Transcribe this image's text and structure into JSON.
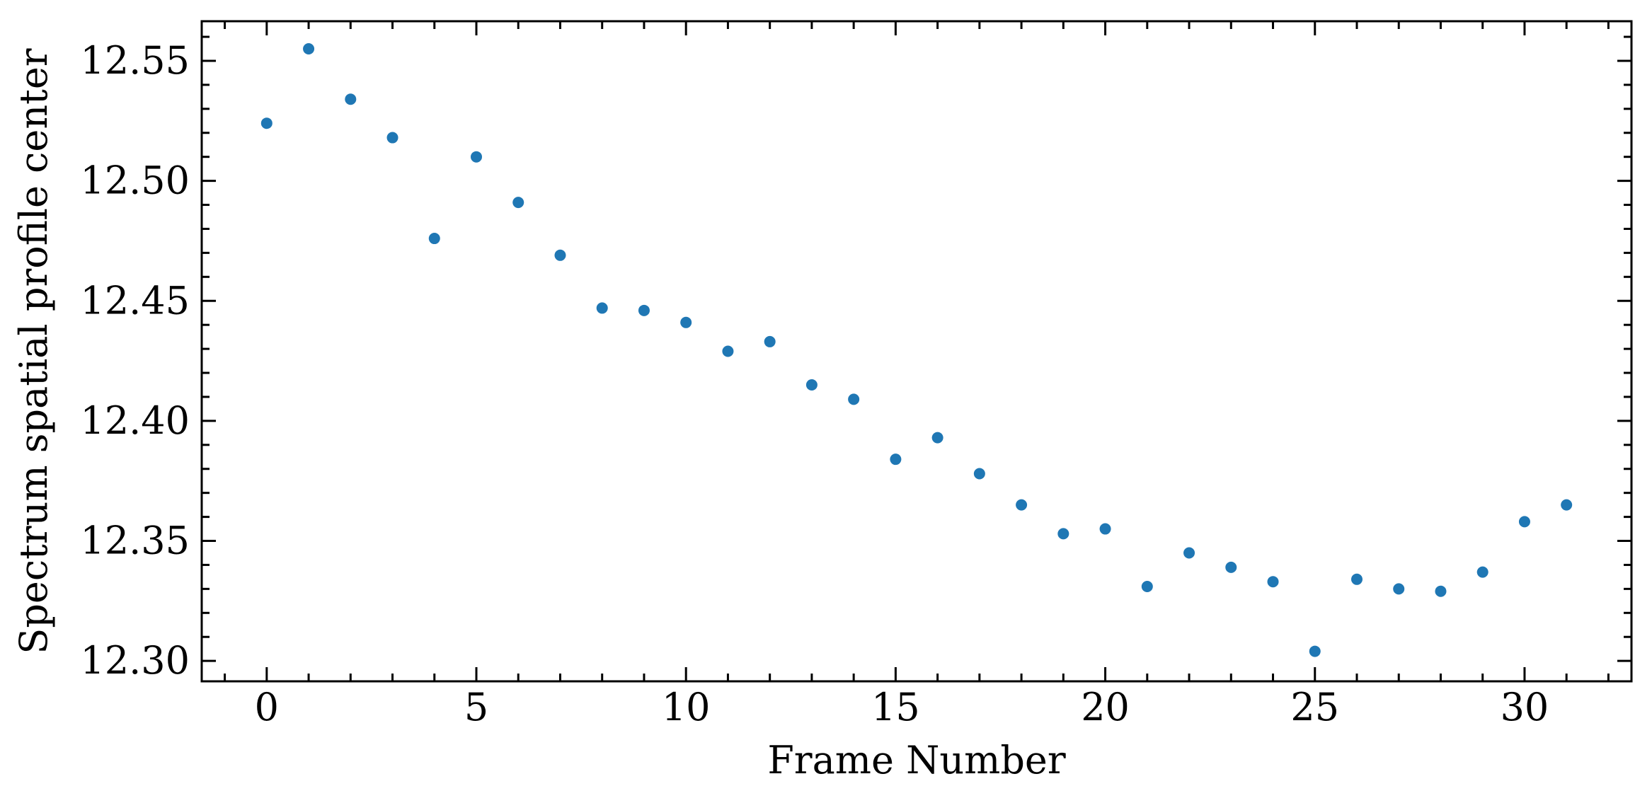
{
  "chart_data": {
    "type": "scatter",
    "title": "",
    "xlabel": "Frame Number",
    "ylabel": "Spectrum spatial profile center",
    "xlim": [
      -1.55,
      32.55
    ],
    "ylim": [
      12.2915,
      12.5665
    ],
    "x_major_ticks": [
      0,
      5,
      10,
      15,
      20,
      25,
      30
    ],
    "x_tick_labels": [
      "0",
      "5",
      "10",
      "15",
      "20",
      "25",
      "30"
    ],
    "x_minor_step": 1,
    "y_major_ticks": [
      12.3,
      12.35,
      12.4,
      12.45,
      12.5,
      12.55
    ],
    "y_tick_labels": [
      "12.30",
      "12.35",
      "12.40",
      "12.45",
      "12.50",
      "12.55"
    ],
    "y_minor_step": 0.01,
    "grid": false,
    "marker_color": "#1f77b4",
    "series": [
      {
        "x": [
          0,
          1,
          2,
          3,
          4,
          5,
          6,
          7,
          8,
          9,
          10,
          11,
          12,
          13,
          14,
          15,
          16,
          17,
          18,
          19,
          20,
          21,
          22,
          23,
          24,
          25,
          26,
          27,
          28,
          29,
          30,
          31
        ],
        "y": [
          12.524,
          12.555,
          12.534,
          12.518,
          12.476,
          12.51,
          12.491,
          12.469,
          12.447,
          12.446,
          12.441,
          12.429,
          12.433,
          12.415,
          12.409,
          12.384,
          12.393,
          12.378,
          12.365,
          12.353,
          12.355,
          12.331,
          12.345,
          12.339,
          12.333,
          12.304,
          12.334,
          12.33,
          12.329,
          12.337,
          12.358,
          12.365
        ]
      }
    ]
  }
}
